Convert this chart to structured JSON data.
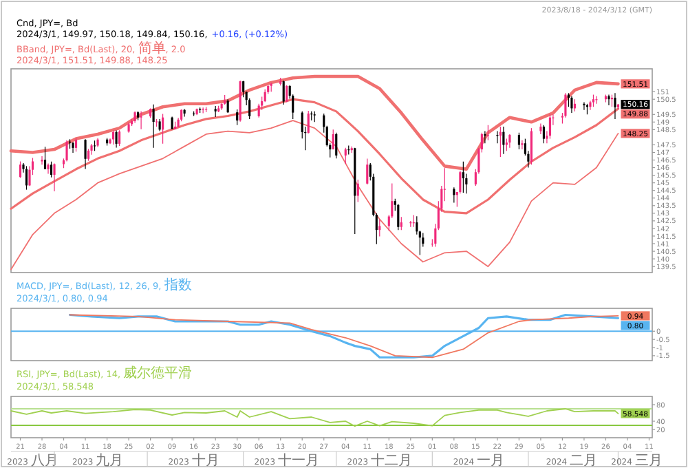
{
  "chart_data": [
    {
      "type": "candlestick",
      "title": "Cnd, JPY=, Bd",
      "subtitle": "2024/3/1, 149.97, 150.18, 149.84, 150.16,",
      "annotations": [
        "+0.16, (+0.12%)",
        "BBand, JPY=, Bd(Last), 20, 简单, 2.0",
        "2024/3/1, 151.51, 149.88, 148.25",
        "2023/8/18 - 2024/3/12 (GMT)"
      ],
      "value_labels": [
        null,
        null,
        null,
        null,
        null,
        null,
        null,
        null,
        null,
        null,
        null,
        null,
        null,
        null,
        null,
        null,
        null,
        null,
        null,
        null,
        null,
        null,
        null,
        null,
        null,
        null,
        null,
        null,
        null,
        null,
        null,
        null,
        null,
        null,
        null,
        null,
        null,
        null,
        null,
        null,
        null,
        null,
        null,
        null,
        null,
        null,
        null,
        null,
        null,
        null,
        null,
        null,
        null,
        null,
        null,
        null,
        null,
        null,
        null,
        null,
        null,
        null,
        null,
        null,
        null,
        null,
        null,
        null,
        null,
        null,
        null,
        null,
        null,
        null,
        null,
        null,
        null,
        null,
        null,
        null,
        null,
        null,
        null,
        null,
        null,
        null,
        null,
        null,
        null,
        null,
        null,
        null,
        null,
        null,
        null,
        null,
        null,
        null,
        null,
        null,
        null,
        null,
        null,
        null,
        null,
        null,
        null,
        null,
        null,
        null,
        null,
        null,
        null,
        null,
        null,
        null,
        null,
        null,
        null,
        null,
        null,
        null,
        null,
        null,
        null,
        null,
        null,
        null,
        null,
        null,
        null,
        null,
        null,
        null,
        null,
        null,
        null,
        null,
        null,
        "150.16"
      ],
      "x": [
        "2023-08-21",
        "2023-08-22",
        "2023-08-23",
        "2023-08-24",
        "2023-08-25",
        "2023-08-28",
        "2023-08-29",
        "2023-08-30",
        "2023-08-31",
        "2023-09-01",
        "2023-09-04",
        "2023-09-05",
        "2023-09-06",
        "2023-09-07",
        "2023-09-08",
        "2023-09-11",
        "2023-09-12",
        "2023-09-13",
        "2023-09-14",
        "2023-09-15",
        "2023-09-18",
        "2023-09-19",
        "2023-09-20",
        "2023-09-21",
        "2023-09-22",
        "2023-09-25",
        "2023-09-26",
        "2023-09-27",
        "2023-09-28",
        "2023-09-29",
        "2023-10-02",
        "2023-10-03",
        "2023-10-04",
        "2023-10-05",
        "2023-10-06",
        "2023-10-09",
        "2023-10-10",
        "2023-10-11",
        "2023-10-12",
        "2023-10-13",
        "2023-10-16",
        "2023-10-17",
        "2023-10-18",
        "2023-10-19",
        "2023-10-20",
        "2023-10-23",
        "2023-10-24",
        "2023-10-25",
        "2023-10-26",
        "2023-10-27",
        "2023-10-30",
        "2023-10-31",
        "2023-11-01",
        "2023-11-02",
        "2023-11-03",
        "2023-11-06",
        "2023-11-07",
        "2023-11-08",
        "2023-11-09",
        "2023-11-10",
        "2023-11-13",
        "2023-11-14",
        "2023-11-15",
        "2023-11-16",
        "2023-11-17",
        "2023-11-20",
        "2023-11-21",
        "2023-11-22",
        "2023-11-23",
        "2023-11-24",
        "2023-11-27",
        "2023-11-28",
        "2023-11-29",
        "2023-11-30",
        "2023-12-01",
        "2023-12-04",
        "2023-12-05",
        "2023-12-06",
        "2023-12-07",
        "2023-12-08",
        "2023-12-11",
        "2023-12-12",
        "2023-12-13",
        "2023-12-14",
        "2023-12-15",
        "2023-12-18",
        "2023-12-19",
        "2023-12-20",
        "2023-12-21",
        "2023-12-22",
        "2023-12-25",
        "2023-12-26",
        "2023-12-27",
        "2023-12-28",
        "2023-12-29",
        "2024-01-01",
        "2024-01-02",
        "2024-01-03",
        "2024-01-04",
        "2024-01-05",
        "2024-01-08",
        "2024-01-09",
        "2024-01-10",
        "2024-01-11",
        "2024-01-12",
        "2024-01-15",
        "2024-01-16",
        "2024-01-17",
        "2024-01-18",
        "2024-01-19",
        "2024-01-22",
        "2024-01-23",
        "2024-01-24",
        "2024-01-25",
        "2024-01-26",
        "2024-01-29",
        "2024-01-30",
        "2024-01-31",
        "2024-02-01",
        "2024-02-02",
        "2024-02-05",
        "2024-02-06",
        "2024-02-07",
        "2024-02-08",
        "2024-02-09",
        "2024-02-12",
        "2024-02-13",
        "2024-02-14",
        "2024-02-15",
        "2024-02-16",
        "2024-02-19",
        "2024-02-20",
        "2024-02-21",
        "2024-02-22",
        "2024-02-23",
        "2024-02-26",
        "2024-02-27",
        "2024-02-28",
        "2024-02-29",
        "2024-03-01"
      ],
      "ohlc": [
        [
          145.38,
          146.41,
          145.33,
          146.2
        ],
        [
          146.2,
          146.3,
          145.67,
          145.91
        ],
        [
          145.91,
          146.1,
          144.55,
          144.83
        ],
        [
          144.83,
          146.09,
          144.79,
          145.86
        ],
        [
          145.86,
          146.64,
          145.52,
          146.41
        ],
        [
          146.41,
          146.75,
          146.2,
          146.52
        ],
        [
          146.52,
          147.37,
          145.9,
          145.9
        ],
        [
          145.9,
          146.27,
          145.6,
          146.19
        ],
        [
          146.19,
          146.4,
          145.36,
          145.53
        ],
        [
          145.53,
          146.27,
          144.44,
          146.23
        ],
        [
          146.23,
          146.6,
          145.97,
          146.48
        ],
        [
          146.48,
          147.8,
          146.41,
          147.71
        ],
        [
          147.71,
          147.87,
          147.25,
          147.65
        ],
        [
          147.65,
          147.65,
          146.98,
          147.3
        ],
        [
          147.3,
          147.93,
          147.05,
          147.83
        ],
        [
          147.83,
          147.87,
          145.91,
          146.58
        ],
        [
          146.58,
          147.23,
          146.45,
          147.12
        ],
        [
          147.12,
          147.56,
          146.85,
          147.46
        ],
        [
          147.46,
          147.78,
          147.1,
          147.45
        ],
        [
          147.45,
          147.94,
          147.35,
          147.85
        ],
        [
          147.85,
          147.95,
          147.45,
          147.6
        ],
        [
          147.6,
          147.92,
          147.55,
          147.86
        ],
        [
          147.86,
          148.45,
          147.52,
          148.34
        ],
        [
          148.34,
          148.45,
          147.32,
          147.57
        ],
        [
          147.57,
          148.46,
          147.43,
          148.37
        ],
        [
          148.37,
          148.96,
          148.3,
          148.86
        ],
        [
          148.86,
          149.19,
          148.74,
          149.06
        ],
        [
          149.06,
          149.71,
          148.95,
          149.64
        ],
        [
          149.64,
          149.71,
          149.12,
          149.3
        ],
        [
          149.3,
          149.7,
          148.53,
          149.37
        ],
        [
          149.37,
          149.9,
          149.28,
          149.86
        ],
        [
          149.86,
          150.16,
          147.3,
          149.01
        ],
        [
          149.01,
          149.2,
          148.7,
          149.04
        ],
        [
          149.04,
          149.2,
          148.4,
          148.5
        ],
        [
          148.5,
          149.53,
          147.58,
          149.3
        ],
        [
          149.3,
          149.35,
          148.53,
          148.53
        ],
        [
          148.53,
          149.03,
          148.52,
          148.7
        ],
        [
          148.7,
          149.27,
          148.65,
          149.16
        ],
        [
          149.16,
          149.83,
          149.05,
          149.8
        ],
        [
          149.8,
          149.85,
          149.35,
          149.56
        ],
        [
          149.56,
          149.7,
          149.4,
          149.52
        ],
        [
          149.52,
          149.88,
          149.45,
          149.86
        ],
        [
          149.86,
          149.95,
          149.6,
          149.8
        ],
        [
          149.8,
          149.95,
          149.58,
          149.85
        ],
        [
          149.85,
          149.99,
          149.65,
          149.86
        ],
        [
          149.86,
          150.05,
          149.33,
          149.7
        ],
        [
          149.7,
          150.07,
          149.65,
          149.9
        ],
        [
          149.9,
          150.23,
          149.8,
          150.2
        ],
        [
          150.2,
          150.78,
          150.15,
          150.4
        ],
        [
          150.4,
          150.5,
          149.6,
          149.64
        ],
        [
          149.64,
          149.83,
          148.8,
          149.1
        ],
        [
          149.1,
          151.72,
          149.02,
          151.68
        ],
        [
          151.68,
          151.71,
          150.63,
          150.98
        ],
        [
          150.98,
          151,
          150.1,
          150.45
        ],
        [
          150.45,
          150.55,
          149.2,
          149.38
        ],
        [
          149.38,
          150.2,
          149.3,
          150.08
        ],
        [
          150.08,
          150.67,
          149.8,
          150.37
        ],
        [
          150.37,
          151.15,
          150.32,
          150.97
        ],
        [
          150.97,
          151.4,
          150.85,
          151.38
        ],
        [
          151.38,
          151.59,
          151,
          151.51
        ],
        [
          151.51,
          151.91,
          151.4,
          151.68
        ],
        [
          151.68,
          151.72,
          150.15,
          150.35
        ],
        [
          150.35,
          151.43,
          150.3,
          151.37
        ],
        [
          151.37,
          151.43,
          150.53,
          150.73
        ],
        [
          150.73,
          150.81,
          149.19,
          149.62
        ],
        [
          149.62,
          149.7,
          147.92,
          148.34
        ],
        [
          148.34,
          148.7,
          147.15,
          148.28
        ],
        [
          148.28,
          149.74,
          148.26,
          149.56
        ],
        [
          149.56,
          149.7,
          149.1,
          149.5
        ],
        [
          149.5,
          149.7,
          149,
          149.44
        ],
        [
          149.44,
          149.56,
          148.3,
          148.68
        ],
        [
          148.68,
          148.75,
          147.4,
          147.48
        ],
        [
          147.48,
          147.6,
          146.67,
          147.2
        ],
        [
          147.2,
          148.5,
          147.2,
          148.2
        ],
        [
          148.2,
          148.3,
          146.6,
          146.8
        ],
        [
          146.8,
          147.3,
          146.25,
          147.2
        ],
        [
          147.2,
          147.45,
          146.86,
          147.15
        ],
        [
          147.15,
          147.4,
          146.98,
          147.28
        ],
        [
          147.28,
          147.3,
          141.64,
          144.15
        ],
        [
          144.15,
          145.21,
          143.74,
          144.95
        ],
        [
          144.95,
          146.59,
          144.9,
          146.2
        ],
        [
          146.2,
          146.3,
          145.16,
          145.4
        ],
        [
          145.4,
          145.6,
          142.8,
          142.9
        ],
        [
          142.9,
          143,
          140.97,
          141.9
        ],
        [
          141.9,
          142.6,
          141.48,
          142.16
        ],
        [
          142.16,
          142.89,
          141.85,
          142.79
        ],
        [
          142.79,
          144.96,
          142.68,
          143.8
        ],
        [
          143.8,
          143.95,
          143.16,
          143.55
        ],
        [
          143.55,
          143.6,
          141.9,
          142.1
        ],
        [
          142.1,
          142.75,
          141.9,
          142.4
        ],
        [
          142.4,
          142.5,
          142.1,
          142.4
        ],
        [
          142.4,
          142.88,
          142.1,
          142.4
        ],
        [
          142.4,
          142.8,
          141.6,
          141.8
        ],
        [
          141.8,
          141.85,
          140.25,
          141.4
        ],
        [
          141.4,
          141.7,
          140.8,
          141
        ],
        [
          141,
          141.3,
          140.8,
          141
        ],
        [
          141,
          142.3,
          140.8,
          142
        ],
        [
          142,
          143.8,
          141.9,
          143.3
        ],
        [
          143.3,
          144.8,
          143.1,
          144.6
        ],
        [
          144.6,
          145.97,
          143.8,
          144.6
        ],
        [
          144.6,
          144.7,
          143.7,
          144.2
        ],
        [
          144.2,
          144.4,
          143.42,
          144.4
        ],
        [
          144.4,
          145.8,
          144.3,
          145.7
        ],
        [
          145.7,
          146.4,
          144.35,
          145.3
        ],
        [
          145.3,
          145.6,
          144.3,
          144.9
        ],
        [
          144.9,
          145.9,
          144.8,
          145.7
        ],
        [
          145.7,
          147.3,
          145.6,
          147.2
        ],
        [
          147.2,
          148.3,
          147,
          148.2
        ],
        [
          148.2,
          148.4,
          147.6,
          148.1
        ],
        [
          148.1,
          148.8,
          147.8,
          148.15
        ],
        [
          148.15,
          148.4,
          147.6,
          148.1
        ],
        [
          148.1,
          148.7,
          146.7,
          148.35
        ],
        [
          148.35,
          148.7,
          146.9,
          147.5
        ],
        [
          147.5,
          147.9,
          147.1,
          147.65
        ],
        [
          147.65,
          148.2,
          147.3,
          148.15
        ],
        [
          148.15,
          148.3,
          147.2,
          147.5
        ],
        [
          147.5,
          147.8,
          147.2,
          147.6
        ],
        [
          147.6,
          147.9,
          146.8,
          146.9
        ],
        [
          146.9,
          147.1,
          146,
          146.4
        ],
        [
          146.4,
          148.6,
          146.2,
          148.4
        ],
        [
          148.4,
          148.9,
          148.2,
          148.7
        ],
        [
          148.7,
          148.8,
          147.6,
          147.9
        ],
        [
          147.9,
          148.4,
          147.6,
          148.1
        ],
        [
          148.1,
          149.5,
          147.9,
          149.3
        ],
        [
          149.3,
          149.5,
          148.8,
          149.3
        ],
        [
          149.3,
          149.6,
          148.9,
          149.4
        ],
        [
          149.4,
          150.9,
          149.3,
          150.8
        ],
        [
          150.8,
          150.9,
          150,
          150.6
        ],
        [
          150.6,
          150.7,
          149.6,
          149.9
        ],
        [
          149.9,
          150.5,
          149.7,
          150.2
        ],
        [
          150.2,
          150.3,
          149.8,
          150.1
        ],
        [
          150.1,
          150.2,
          149.5,
          150
        ],
        [
          150,
          150.4,
          149.8,
          150.3
        ],
        [
          150.3,
          150.8,
          150,
          150.5
        ],
        [
          150.5,
          150.7,
          150.2,
          150.5
        ],
        [
          150.5,
          150.8,
          150.3,
          150.7
        ],
        [
          150.7,
          150.8,
          150.1,
          150.5
        ],
        [
          150.5,
          150.8,
          150,
          150.6
        ],
        [
          150.6,
          150.9,
          149.2,
          149.97
        ],
        [
          149.97,
          150.18,
          149.84,
          150.16
        ]
      ],
      "series": [
        {
          "type": "line",
          "color": "#f07070",
          "x": [
            "2023-08-18",
            "2023-08-25",
            "2023-09-01",
            "2023-09-08",
            "2023-09-15",
            "2023-09-22",
            "2023-09-29",
            "2023-10-06",
            "2023-10-13",
            "2023-10-20",
            "2023-10-27",
            "2023-11-03",
            "2023-11-10",
            "2023-11-17",
            "2023-11-24",
            "2023-12-01",
            "2023-12-08",
            "2023-12-15",
            "2023-12-22",
            "2023-12-29",
            "2024-01-05",
            "2024-01-12",
            "2024-01-19",
            "2024-01-26",
            "2024-02-02",
            "2024-02-09",
            "2024-02-16",
            "2024-02-23",
            "2024-03-01"
          ],
          "values": [
            147.1,
            147.0,
            147.2,
            147.9,
            148.2,
            148.6,
            149.5,
            150.0,
            150.2,
            150.2,
            150.4,
            151.1,
            151.6,
            151.9,
            152.0,
            152.0,
            152.0,
            151.2,
            149.6,
            147.8,
            146.1,
            145.9,
            148.3,
            149.3,
            149.0,
            149.6,
            151.1,
            151.6,
            151.51
          ],
          "value_labels": [
            null,
            null,
            null,
            null,
            null,
            null,
            null,
            null,
            null,
            null,
            null,
            null,
            null,
            null,
            null,
            null,
            null,
            null,
            null,
            null,
            null,
            null,
            null,
            null,
            null,
            null,
            null,
            null,
            "151.51"
          ]
        },
        {
          "type": "line",
          "color": "#f07070",
          "x": [
            "2023-08-18",
            "2023-08-25",
            "2023-09-01",
            "2023-09-08",
            "2023-09-15",
            "2023-09-22",
            "2023-09-29",
            "2023-10-06",
            "2023-10-13",
            "2023-10-20",
            "2023-10-27",
            "2023-11-03",
            "2023-11-10",
            "2023-11-17",
            "2023-11-24",
            "2023-12-01",
            "2023-12-08",
            "2023-12-15",
            "2023-12-22",
            "2023-12-29",
            "2024-01-05",
            "2024-01-12",
            "2024-01-19",
            "2024-01-26",
            "2024-02-02",
            "2024-02-09",
            "2024-02-16",
            "2024-02-23",
            "2024-03-01"
          ],
          "values": [
            143.3,
            144.3,
            145.1,
            145.9,
            146.6,
            147.1,
            147.8,
            148.3,
            148.8,
            149.2,
            149.4,
            149.7,
            150.1,
            150.5,
            150.3,
            149.7,
            148.4,
            146.9,
            145.3,
            143.9,
            143.1,
            143.0,
            143.9,
            145.2,
            146.4,
            147.3,
            148.0,
            148.8,
            149.88
          ],
          "value_labels": [
            null,
            null,
            null,
            null,
            null,
            null,
            null,
            null,
            null,
            null,
            null,
            null,
            null,
            null,
            null,
            null,
            null,
            null,
            null,
            null,
            null,
            null,
            null,
            null,
            null,
            null,
            null,
            null,
            "149.88"
          ]
        },
        {
          "type": "line",
          "color": "#f07070",
          "x": [
            "2023-08-18",
            "2023-08-25",
            "2023-09-01",
            "2023-09-08",
            "2023-09-15",
            "2023-09-22",
            "2023-09-29",
            "2023-10-06",
            "2023-10-13",
            "2023-10-20",
            "2023-10-27",
            "2023-11-03",
            "2023-11-10",
            "2023-11-17",
            "2023-11-24",
            "2023-12-01",
            "2023-12-08",
            "2023-12-15",
            "2023-12-22",
            "2023-12-29",
            "2024-01-05",
            "2024-01-12",
            "2024-01-19",
            "2024-01-26",
            "2024-02-02",
            "2024-02-09",
            "2024-02-16",
            "2024-02-23",
            "2024-03-01"
          ],
          "values": [
            139.3,
            141.6,
            143.0,
            143.9,
            145.0,
            145.6,
            146.1,
            146.6,
            147.4,
            148.2,
            148.4,
            148.3,
            148.6,
            149.1,
            148.6,
            147.4,
            144.8,
            142.6,
            141.0,
            139.8,
            140.4,
            140.5,
            139.5,
            141.1,
            143.8,
            145.0,
            144.9,
            146.0,
            148.25
          ],
          "value_labels": [
            null,
            null,
            null,
            null,
            null,
            null,
            null,
            null,
            null,
            null,
            null,
            null,
            null,
            null,
            null,
            null,
            null,
            null,
            null,
            null,
            null,
            null,
            null,
            null,
            null,
            null,
            null,
            null,
            "148.25"
          ]
        }
      ],
      "xlim": [
        "2023-08-18",
        "2024-03-12"
      ],
      "ylim": [
        139.1,
        152.5
      ],
      "yticks": [
        139.5,
        140,
        140.5,
        141,
        141.5,
        142,
        142.5,
        143,
        143.5,
        144,
        144.5,
        145,
        145.5,
        146,
        146.5,
        147,
        147.5,
        148.5,
        149,
        149.5,
        150.5,
        151
      ],
      "tick_labels": "y"
    },
    {
      "type": "line",
      "title": "MACD, JPY=, Bd(Last), 12, 26, 9, 指数",
      "subtitle": "2024/3/1, 0.80, 0.94",
      "series": [
        {
          "color": "#58b4f0",
          "x": [
            "2023-09-06",
            "2023-09-13",
            "2023-09-22",
            "2023-09-28",
            "2023-10-04",
            "2023-10-10",
            "2023-10-19",
            "2023-10-27",
            "2023-10-31",
            "2023-11-06",
            "2023-11-10",
            "2023-11-16",
            "2023-11-23",
            "2023-11-29",
            "2023-12-04",
            "2023-12-07",
            "2023-12-12",
            "2023-12-15",
            "2023-12-20",
            "2023-12-26",
            "2024-01-01",
            "2024-01-05",
            "2024-01-11",
            "2024-01-16",
            "2024-01-19",
            "2024-01-25",
            "2024-02-01",
            "2024-02-08",
            "2024-02-13",
            "2024-02-22",
            "2024-03-01"
          ],
          "values": [
            1.0,
            0.9,
            0.8,
            0.9,
            0.9,
            0.6,
            0.6,
            0.6,
            0.4,
            0.4,
            0.6,
            0.4,
            0.0,
            -0.3,
            -0.7,
            -0.9,
            -1.1,
            -1.6,
            -1.6,
            -1.6,
            -1.5,
            -0.9,
            -0.3,
            0.2,
            0.8,
            0.9,
            0.7,
            0.7,
            1.0,
            0.9,
            0.8
          ],
          "value_labels": [
            null,
            null,
            null,
            null,
            null,
            null,
            null,
            null,
            null,
            null,
            null,
            null,
            null,
            null,
            null,
            null,
            null,
            null,
            null,
            null,
            null,
            null,
            null,
            null,
            null,
            null,
            null,
            null,
            null,
            null,
            "0.80"
          ]
        },
        {
          "color": "#f07860",
          "x": [
            "2023-09-06",
            "2023-09-28",
            "2023-10-10",
            "2023-10-27",
            "2023-11-16",
            "2023-11-23",
            "2023-12-04",
            "2023-12-12",
            "2023-12-20",
            "2024-01-01",
            "2024-01-11",
            "2024-01-19",
            "2024-01-29",
            "2024-02-02",
            "2024-02-14",
            "2024-02-22",
            "2024-03-01"
          ],
          "values": [
            1.0,
            0.9,
            0.7,
            0.6,
            0.5,
            0.1,
            -0.4,
            -0.9,
            -1.5,
            -1.6,
            -1.1,
            -0.1,
            0.6,
            0.7,
            0.8,
            0.9,
            0.94
          ],
          "value_labels": [
            null,
            null,
            null,
            null,
            null,
            null,
            null,
            null,
            null,
            null,
            null,
            null,
            null,
            null,
            null,
            null,
            "0.94"
          ]
        }
      ],
      "ref_lines": [
        {
          "axis": "y",
          "value": 0,
          "color": "#58b4f0"
        }
      ],
      "xlim": [
        "2023-08-18",
        "2024-03-12"
      ],
      "ylim": [
        -1.8,
        1.4
      ],
      "yticks": [
        0,
        -0.5,
        -1,
        -1.5
      ],
      "tick_labels": "y"
    },
    {
      "type": "line",
      "title": "RSI, JPY=, Bd(Last), 14, 威尔德平滑",
      "subtitle": "2024/3/1, 58.548",
      "series": [
        {
          "color": "#a0d050",
          "x": [
            "2023-08-18",
            "2023-08-23",
            "2023-08-28",
            "2023-08-31",
            "2023-09-05",
            "2023-09-11",
            "2023-09-20",
            "2023-09-27",
            "2023-10-02",
            "2023-10-09",
            "2023-10-13",
            "2023-10-20",
            "2023-10-26",
            "2023-10-30",
            "2023-10-31",
            "2023-11-03",
            "2023-11-10",
            "2023-11-16",
            "2023-11-23",
            "2023-11-29",
            "2023-12-04",
            "2023-12-07",
            "2023-12-11",
            "2023-12-15",
            "2023-12-19",
            "2023-12-26",
            "2024-01-01",
            "2024-01-05",
            "2024-01-10",
            "2024-01-16",
            "2024-01-22",
            "2024-01-25",
            "2024-02-01",
            "2024-02-07",
            "2024-02-13",
            "2024-02-16",
            "2024-02-22",
            "2024-02-29",
            "2024-03-01"
          ],
          "values": [
            65,
            57,
            65,
            60,
            65,
            59,
            63,
            68,
            67,
            55,
            61,
            60,
            65,
            50,
            65,
            50,
            63,
            46,
            50,
            37,
            40,
            28,
            40,
            29,
            39,
            35,
            29,
            54,
            61,
            67,
            67,
            61,
            52,
            65,
            70,
            63,
            65,
            65,
            58.548
          ],
          "value_labels": [
            null,
            null,
            null,
            null,
            null,
            null,
            null,
            null,
            null,
            null,
            null,
            null,
            null,
            null,
            null,
            null,
            null,
            null,
            null,
            null,
            null,
            null,
            null,
            null,
            null,
            null,
            null,
            null,
            null,
            null,
            null,
            null,
            null,
            null,
            null,
            null,
            null,
            null,
            "58.548"
          ]
        }
      ],
      "ref_lines": [
        {
          "axis": "y",
          "value": 70,
          "color": "#b8e090"
        },
        {
          "axis": "y",
          "value": 30,
          "color": "#88c840"
        }
      ],
      "xlim": [
        "2023-08-18",
        "2024-03-12"
      ],
      "ylim": [
        0,
        100
      ],
      "yticks": [
        20,
        40,
        80
      ],
      "xticks": [
        {
          "value": "2023-08-21",
          "label": "21"
        },
        {
          "value": "2023-08-28",
          "label": "28"
        },
        {
          "value": "2023-09-04",
          "label": "04"
        },
        {
          "value": "2023-09-11",
          "label": "11"
        },
        {
          "value": "2023-09-18",
          "label": "18"
        },
        {
          "value": "2023-09-25",
          "label": "25"
        },
        {
          "value": "2023-10-02",
          "label": "02"
        },
        {
          "value": "2023-10-09",
          "label": "09"
        },
        {
          "value": "2023-10-16",
          "label": "16"
        },
        {
          "value": "2023-10-23",
          "label": "23"
        },
        {
          "value": "2023-10-30",
          "label": "30"
        },
        {
          "value": "2023-11-06",
          "label": "06"
        },
        {
          "value": "2023-11-13",
          "label": "13"
        },
        {
          "value": "2023-11-20",
          "label": "20"
        },
        {
          "value": "2023-11-27",
          "label": "27"
        },
        {
          "value": "2023-12-04",
          "label": "04"
        },
        {
          "value": "2023-12-11",
          "label": "11"
        },
        {
          "value": "2023-12-18",
          "label": "18"
        },
        {
          "value": "2023-12-25",
          "label": "25"
        },
        {
          "value": "2024-01-01",
          "label": "01"
        },
        {
          "value": "2024-01-08",
          "label": "08"
        },
        {
          "value": "2024-01-15",
          "label": "15"
        },
        {
          "value": "2024-01-22",
          "label": "22"
        },
        {
          "value": "2024-01-29",
          "label": "29"
        },
        {
          "value": "2024-02-05",
          "label": "05"
        },
        {
          "value": "2024-02-12",
          "label": "12"
        },
        {
          "value": "2024-02-19",
          "label": "19"
        },
        {
          "value": "2024-02-26",
          "label": "26"
        },
        {
          "value": "2024-03-04",
          "label": "04"
        },
        {
          "value": "2024-03-11",
          "label": "11"
        }
      ],
      "x2lim": [
        "2023-08-18",
        "2024-03-12"
      ],
      "x2ticks": [
        {
          "value": "2023-08-25",
          "label": "2023 八月"
        },
        {
          "value": "2023-09-15",
          "label": "2023 九月"
        },
        {
          "value": "2023-10-16",
          "label": "2023 十月"
        },
        {
          "value": "2023-11-15",
          "label": "2023 十一月"
        },
        {
          "value": "2023-12-15",
          "label": "2023 十二月"
        },
        {
          "value": "2024-01-16",
          "label": "2024 一月"
        },
        {
          "value": "2024-02-15",
          "label": "2024 二月"
        },
        {
          "value": "2024-03-07",
          "label": "2024 三月"
        }
      ]
    }
  ]
}
